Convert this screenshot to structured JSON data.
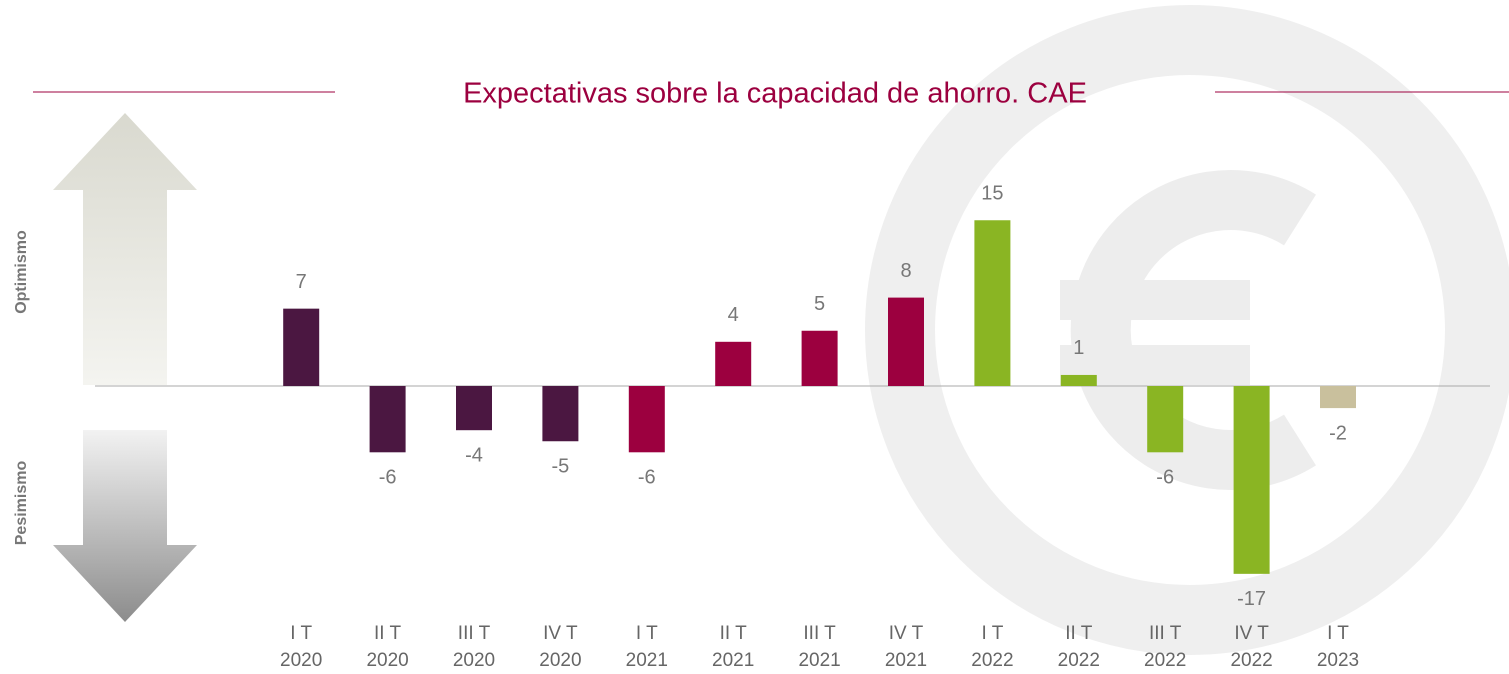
{
  "chart_data": {
    "type": "bar",
    "title": "Expectativas sobre la capacidad de ahorro. CAE",
    "side_labels": [
      "Optimismo",
      "Pesimismo"
    ],
    "categories": [
      [
        "I T",
        "2020"
      ],
      [
        "II T",
        "2020"
      ],
      [
        "III T",
        "2020"
      ],
      [
        "IV T",
        "2020"
      ],
      [
        "I T",
        "2021"
      ],
      [
        "II T",
        "2021"
      ],
      [
        "III T",
        "2021"
      ],
      [
        "IV T",
        "2021"
      ],
      [
        "I T",
        "2022"
      ],
      [
        "II T",
        "2022"
      ],
      [
        "III T",
        "2022"
      ],
      [
        "IV T",
        "2022"
      ],
      [
        "I T",
        "2023"
      ]
    ],
    "values": [
      7,
      -6,
      -4,
      -5,
      -6,
      4,
      5,
      8,
      15,
      1,
      -6,
      -17,
      -2
    ],
    "colors": [
      "#4b1741",
      "#4b1741",
      "#4b1741",
      "#4b1741",
      "#9c003f",
      "#9c003f",
      "#9c003f",
      "#9c003f",
      "#8ab523",
      "#8ab523",
      "#8ab523",
      "#8ab523",
      "#c9c09d"
    ],
    "ylim": [
      -20,
      20
    ]
  }
}
